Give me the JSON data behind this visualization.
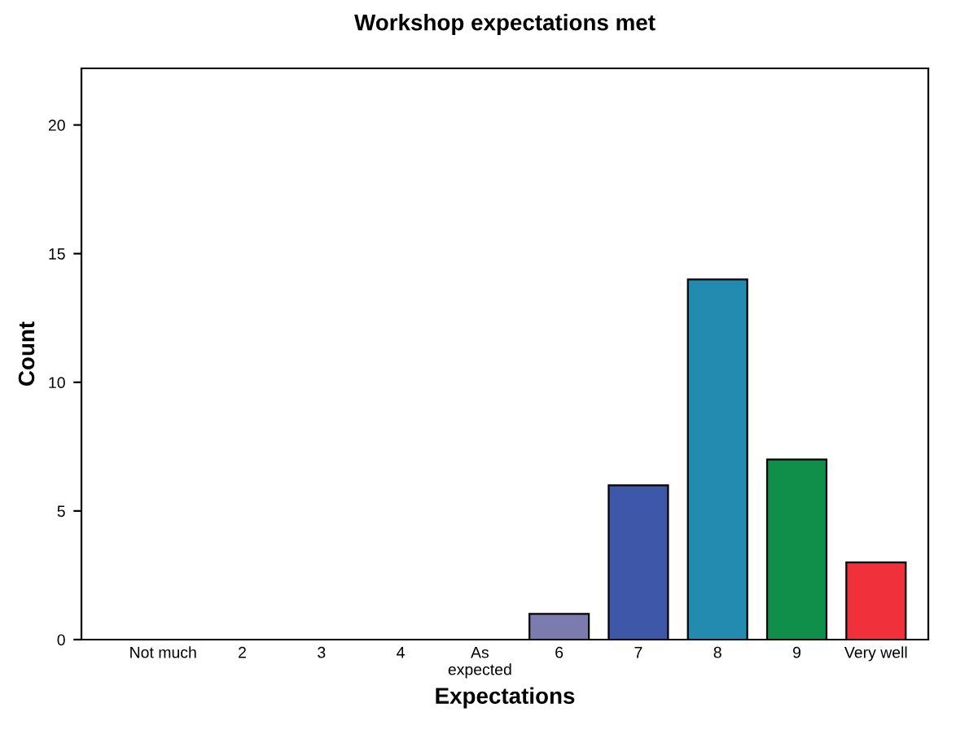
{
  "chart_data": {
    "type": "bar",
    "title": "Workshop expectations met",
    "xlabel": "Expectations",
    "ylabel": "Count",
    "categories": [
      "Not much",
      "2",
      "3",
      "4",
      "As\nexpected",
      "6",
      "7",
      "8",
      "9",
      "Very well"
    ],
    "values": [
      0,
      0,
      0,
      0,
      0,
      1,
      6,
      14,
      7,
      3
    ],
    "colors": [
      "#000000",
      "#000000",
      "#000000",
      "#000000",
      "#000000",
      "#7b7bb0",
      "#3f57a8",
      "#238bb0",
      "#0f8f4a",
      "#f0313c"
    ],
    "ylim": [
      0,
      22.2
    ],
    "yticks": [
      0,
      5,
      10,
      15,
      20
    ],
    "grid": false,
    "legend": false
  }
}
